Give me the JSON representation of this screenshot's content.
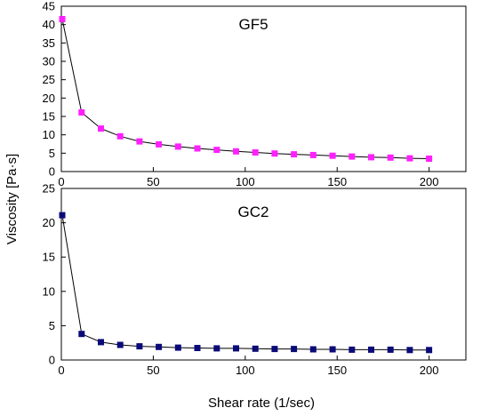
{
  "figure": {
    "ylabel": "Viscosity [Pa·s]",
    "xlabel": "Shear rate (1/sec)"
  },
  "chart_data": [
    {
      "type": "line",
      "title": "GF5",
      "xlabel": "Shear rate (1/sec)",
      "ylabel": "Viscosity [Pa·s]",
      "xlim": [
        0,
        220
      ],
      "ylim": [
        0,
        45
      ],
      "x_ticks": [
        0,
        50,
        100,
        150,
        200
      ],
      "y_ticks": [
        0,
        5,
        10,
        15,
        20,
        25,
        30,
        35,
        40,
        45
      ],
      "marker_color": "#ff1fff",
      "line_color": "#000000",
      "x": [
        0.5,
        11,
        21.5,
        32,
        42.5,
        53,
        63.5,
        74,
        84.5,
        95,
        105.5,
        116,
        126.5,
        137,
        147.5,
        158,
        168.5,
        179,
        189.5,
        200
      ],
      "y": [
        41.5,
        16.1,
        11.7,
        9.6,
        8.2,
        7.4,
        6.8,
        6.3,
        5.9,
        5.5,
        5.2,
        4.9,
        4.7,
        4.5,
        4.3,
        4.1,
        3.9,
        3.8,
        3.6,
        3.5
      ]
    },
    {
      "type": "line",
      "title": "GC2",
      "xlabel": "Shear rate (1/sec)",
      "ylabel": "Viscosity [Pa·s]",
      "xlim": [
        0,
        220
      ],
      "ylim": [
        0,
        25
      ],
      "x_ticks": [
        0,
        50,
        100,
        150,
        200
      ],
      "y_ticks": [
        0,
        5,
        10,
        15,
        20,
        25
      ],
      "marker_color": "#0a0a78",
      "line_color": "#000000",
      "x": [
        0.5,
        11,
        21.5,
        32,
        42.5,
        53,
        63.5,
        74,
        84.5,
        95,
        105.5,
        116,
        126.5,
        137,
        147.5,
        158,
        168.5,
        179,
        189.5,
        200
      ],
      "y": [
        21.1,
        3.8,
        2.6,
        2.2,
        2.0,
        1.9,
        1.8,
        1.75,
        1.7,
        1.7,
        1.65,
        1.6,
        1.6,
        1.55,
        1.55,
        1.5,
        1.5,
        1.5,
        1.45,
        1.45
      ]
    }
  ]
}
